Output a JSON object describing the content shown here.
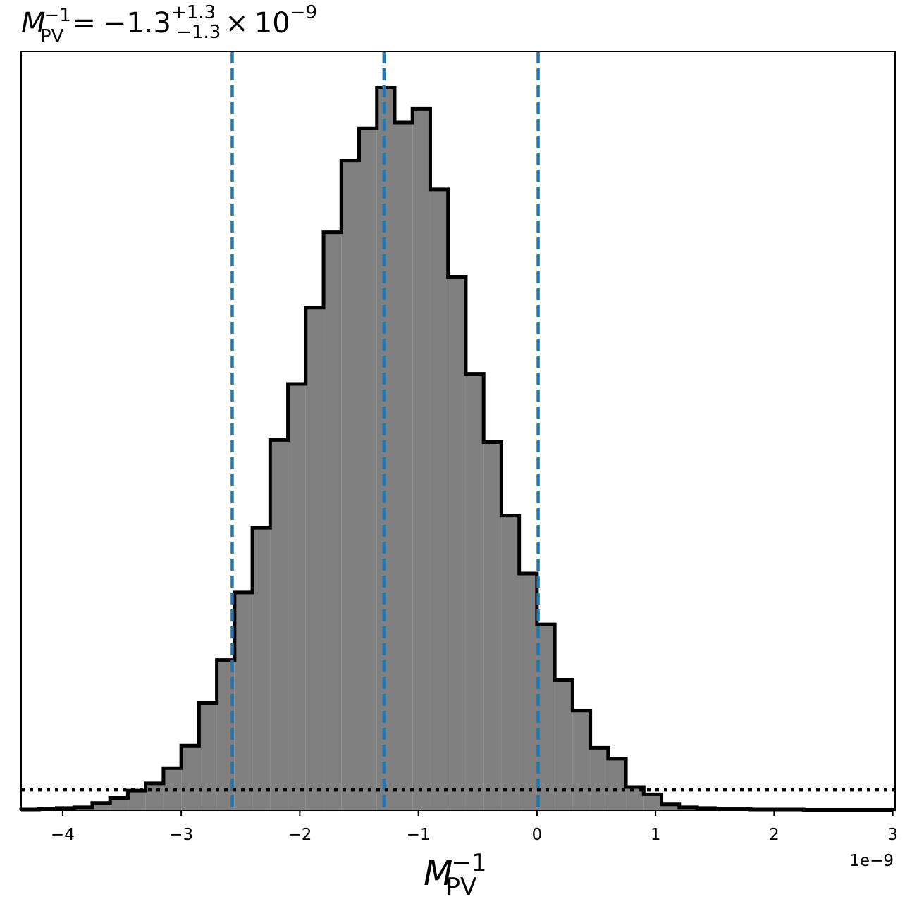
{
  "chart_data": {
    "type": "histogram",
    "title": {
      "symbol": "M",
      "symbol_sub": "PV",
      "symbol_sup": "−1",
      "equals": "=",
      "value": "−1.3",
      "err_plus": "+1.3",
      "err_minus": "−1.3",
      "times": "×",
      "base": "10",
      "exponent": "−9"
    },
    "xlabel": {
      "symbol": "M",
      "sub": "PV",
      "sup": "−1"
    },
    "x_offset_label": "1e−9",
    "xlim": [
      -4.35,
      3.02
    ],
    "ylim": [
      0,
      1.045
    ],
    "x_ticks": [
      {
        "value": -4,
        "label": "−4"
      },
      {
        "value": -3,
        "label": "−3"
      },
      {
        "value": -2,
        "label": "−2"
      },
      {
        "value": -1,
        "label": "−1"
      },
      {
        "value": 0,
        "label": "0"
      },
      {
        "value": 1,
        "label": "1"
      },
      {
        "value": 2,
        "label": "2"
      },
      {
        "value": 3,
        "label": "3"
      }
    ],
    "bin_edges": [
      -4.35,
      -4.2,
      -4.05,
      -3.9,
      -3.75,
      -3.6,
      -3.45,
      -3.3,
      -3.15,
      -3.0,
      -2.85,
      -2.7,
      -2.55,
      -2.4,
      -2.25,
      -2.1,
      -1.95,
      -1.8,
      -1.65,
      -1.5,
      -1.35,
      -1.2,
      -1.05,
      -0.9,
      -0.75,
      -0.6,
      -0.45,
      -0.3,
      -0.15,
      0.0,
      0.15,
      0.3,
      0.45,
      0.6,
      0.75,
      0.9,
      1.05,
      1.2,
      1.35,
      1.5,
      1.65,
      1.8,
      1.95,
      2.1,
      2.25,
      2.4,
      2.55,
      2.7,
      2.85,
      3.0
    ],
    "counts": [
      0.001,
      0.002,
      0.003,
      0.004,
      0.01,
      0.017,
      0.027,
      0.037,
      0.058,
      0.089,
      0.148,
      0.207,
      0.3,
      0.389,
      0.51,
      0.587,
      0.692,
      0.796,
      0.895,
      0.939,
      0.995,
      0.947,
      0.966,
      0.855,
      0.734,
      0.601,
      0.507,
      0.406,
      0.326,
      0.256,
      0.179,
      0.137,
      0.086,
      0.071,
      0.032,
      0.022,
      0.008,
      0.004,
      0.003,
      0.002,
      0.002,
      0.001,
      0.001,
      0.001,
      0.0005,
      0.0005,
      0.0005,
      0.0005,
      0.0005
    ],
    "fill_color": "#808080",
    "edge_color": "#000000",
    "quantile_lines": {
      "values": [
        -2.57,
        -1.29,
        0.01
      ],
      "style": "dashed",
      "color": "#1f77b4"
    },
    "threshold_line": {
      "value": 0.028,
      "style": "dotted",
      "color": "#000000"
    }
  }
}
